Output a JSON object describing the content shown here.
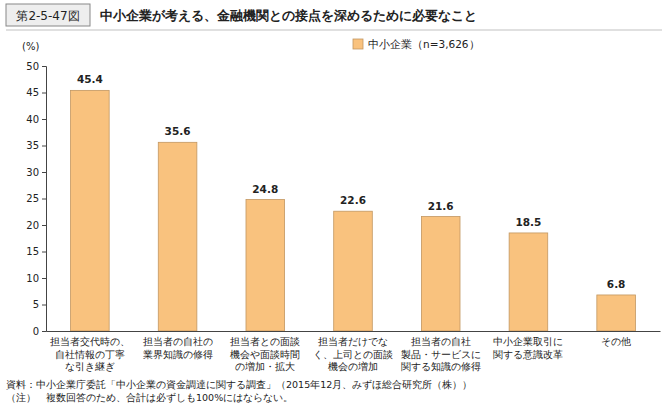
{
  "chart_data": {
    "type": "bar",
    "figure_number": "第2-5-47図",
    "title": "中小企業が考える、金融機関との接点を深めるために必要なこと",
    "y_label": "(%)",
    "categories": [
      "担当者交代時の、\n自社情報の丁寧\nな引き継ぎ",
      "担当者の自社の\n業界知識の修得",
      "担当者との面談\n機会や面談時間\nの増加・拡大",
      "担当者だけでな\nく、上司との面談\n機会の増加",
      "担当者の自社\n製品・サービスに\n関する知識の修得",
      "中小企業取引に\n関する意識改革",
      "その他"
    ],
    "series": [
      {
        "name": "中小企業（n=3,626）",
        "color": "#f9c27e",
        "values": [
          45.4,
          35.6,
          24.8,
          22.6,
          21.6,
          18.5,
          6.8
        ]
      }
    ],
    "ylim": [
      0,
      50
    ],
    "yticks": [
      0,
      5,
      10,
      15,
      20,
      25,
      30,
      35,
      40,
      45,
      50
    ],
    "grid": false,
    "legend": "upper right",
    "data_labels": true,
    "annotations": [
      "資料：中小企業庁委託「中小企業の資金調達に関する調査」（2015年12月、みずほ総合研究所（株））",
      "（注）　複数回答のため、合計は必ずしも100%にはならない。"
    ]
  }
}
